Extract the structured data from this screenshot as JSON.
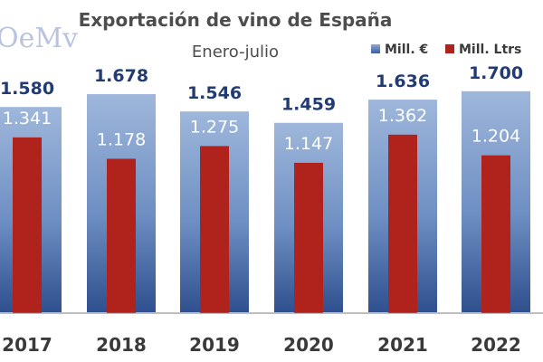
{
  "logo_text": "OeMv",
  "chart_data": {
    "type": "bar",
    "title": "Exportación de vino de España",
    "subtitle": "Enero-julio",
    "categories": [
      "2017",
      "2018",
      "2019",
      "2020",
      "2021",
      "2022"
    ],
    "series": [
      {
        "name": "Mill. €",
        "values": [
          1580,
          1678,
          1546,
          1459,
          1636,
          1700
        ],
        "labels": [
          "1.580",
          "1.678",
          "1.546",
          "1.459",
          "1.636",
          "1.700"
        ],
        "color": "#4a6fae"
      },
      {
        "name": "Mill. Ltrs",
        "values": [
          1341,
          1178,
          1275,
          1147,
          1362,
          1204
        ],
        "labels": [
          "1.341",
          "1.178",
          "1.275",
          "1.147",
          "1.362",
          "1.204"
        ],
        "color": "#b0231d"
      }
    ],
    "ylim": [
      0,
      1900
    ],
    "grid": false,
    "legend_position": "top-right"
  }
}
